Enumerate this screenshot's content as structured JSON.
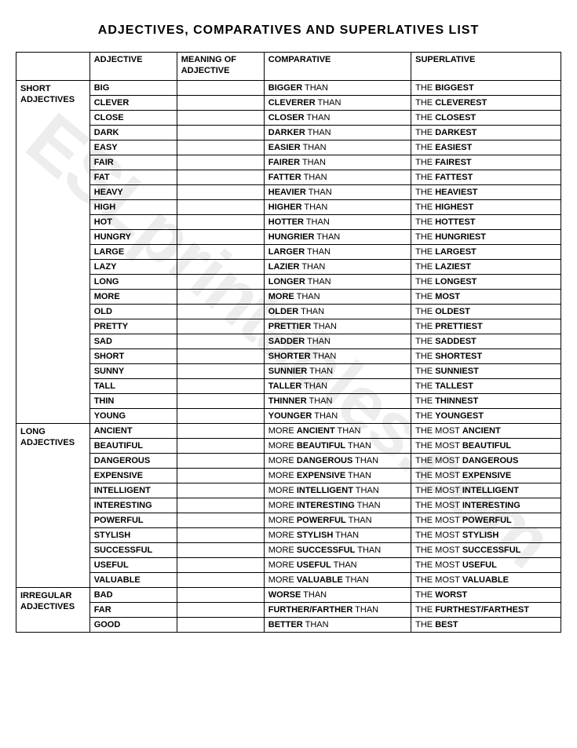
{
  "title": "ADJECTIVES, COMPARATIVES AND SUPERLATIVES LIST",
  "watermark": "ESLprintables.com",
  "headers": {
    "category": "",
    "adjective": "ADJECTIVE",
    "meaning": "MEANING OF ADJECTIVE",
    "comparative": "COMPARATIVE",
    "superlative": "SUPERLATIVE"
  },
  "sections": [
    {
      "category": "SHORT ADJECTIVES",
      "rows": [
        {
          "adj": "BIG",
          "comp_b": "BIGGER",
          "comp_t": " THAN",
          "sup_p": "THE ",
          "sup_b": "BIGGEST"
        },
        {
          "adj": "CLEVER",
          "comp_b": "CLEVERER",
          "comp_t": " THAN",
          "sup_p": "THE ",
          "sup_b": "CLEVEREST"
        },
        {
          "adj": "CLOSE",
          "comp_b": "CLOSER",
          "comp_t": " THAN",
          "sup_p": "THE ",
          "sup_b": "CLOSEST"
        },
        {
          "adj": "DARK",
          "comp_b": "DARKER",
          "comp_t": " THAN",
          "sup_p": "THE ",
          "sup_b": "DARKEST"
        },
        {
          "adj": "EASY",
          "comp_b": "EASIER",
          "comp_t": " THAN",
          "sup_p": "THE ",
          "sup_b": "EASIEST"
        },
        {
          "adj": "FAIR",
          "comp_b": "FAIRER",
          "comp_t": " THAN",
          "sup_p": "THE ",
          "sup_b": "FAIREST"
        },
        {
          "adj": "FAT",
          "comp_b": "FATTER",
          "comp_t": " THAN",
          "sup_p": "THE ",
          "sup_b": "FATTEST"
        },
        {
          "adj": "HEAVY",
          "comp_b": "HEAVIER",
          "comp_t": " THAN",
          "sup_p": "THE ",
          "sup_b": "HEAVIEST"
        },
        {
          "adj": "HIGH",
          "comp_b": "HIGHER",
          "comp_t": " THAN",
          "sup_p": "THE ",
          "sup_b": "HIGHEST"
        },
        {
          "adj": "HOT",
          "comp_b": "HOTTER",
          "comp_t": " THAN",
          "sup_p": "THE ",
          "sup_b": "HOTTEST"
        },
        {
          "adj": "HUNGRY",
          "comp_b": "HUNGRIER",
          "comp_t": " THAN",
          "sup_p": "THE ",
          "sup_b": "HUNGRIEST"
        },
        {
          "adj": "LARGE",
          "comp_b": "LARGER",
          "comp_t": " THAN",
          "sup_p": "THE ",
          "sup_b": "LARGEST"
        },
        {
          "adj": "LAZY",
          "comp_b": "LAZIER",
          "comp_t": " THAN",
          "sup_p": "THE ",
          "sup_b": "LAZIEST"
        },
        {
          "adj": "LONG",
          "comp_b": "LONGER",
          "comp_t": " THAN",
          "sup_p": "THE ",
          "sup_b": "LONGEST"
        },
        {
          "adj": "MORE",
          "comp_b": "MORE",
          "comp_t": " THAN",
          "sup_p": "THE ",
          "sup_b": "MOST"
        },
        {
          "adj": "OLD",
          "comp_b": "OLDER",
          "comp_t": " THAN",
          "sup_p": "THE ",
          "sup_b": "OLDEST"
        },
        {
          "adj": "PRETTY",
          "comp_b": "PRETTIER",
          "comp_t": " THAN",
          "sup_p": "THE ",
          "sup_b": "PRETTIEST"
        },
        {
          "adj": "SAD",
          "comp_b": "SADDER",
          "comp_t": "  THAN",
          "sup_p": "THE ",
          "sup_b": "SADDEST"
        },
        {
          "adj": "SHORT",
          "comp_b": "SHORTER",
          "comp_t": " THAN",
          "sup_p": "THE ",
          "sup_b": "SHORTEST"
        },
        {
          "adj": "SUNNY",
          "comp_b": "SUNNIER",
          "comp_t": " THAN",
          "sup_p": "THE ",
          "sup_b": "SUNNIEST"
        },
        {
          "adj": "TALL",
          "comp_b": "TALLER",
          "comp_t": " THAN",
          "sup_p": "THE ",
          "sup_b": "TALLEST"
        },
        {
          "adj": "THIN",
          "comp_b": "THINNER",
          "comp_t": " THAN",
          "sup_p": "THE ",
          "sup_b": "THINNEST"
        },
        {
          "adj": "YOUNG",
          "comp_b": "YOUNGER",
          "comp_t": " THAN",
          "sup_p": "THE ",
          "sup_b": "YOUNGEST"
        }
      ]
    },
    {
      "category": "LONG ADJECTIVES",
      "rows": [
        {
          "adj": "ANCIENT",
          "comp_p": "MORE ",
          "comp_b": "ANCIENT",
          "comp_t": " THAN",
          "sup_p": "THE MOST ",
          "sup_b": "ANCIENT"
        },
        {
          "adj": "BEAUTIFUL",
          "comp_p": "MORE ",
          "comp_b": "BEAUTIFUL",
          "comp_t": " THAN",
          "sup_p": "THE MOST ",
          "sup_b": "BEAUTIFUL"
        },
        {
          "adj": "DANGEROUS",
          "comp_p": "MORE ",
          "comp_b": "DANGEROUS",
          "comp_t": " THAN",
          "sup_p": "THE MOST ",
          "sup_b": "DANGEROUS"
        },
        {
          "adj": "EXPENSIVE",
          "comp_p": "MORE ",
          "comp_b": "EXPENSIVE",
          "comp_t": " THAN",
          "sup_p": "THE MOST ",
          "sup_b": "EXPENSIVE"
        },
        {
          "adj": "INTELLIGENT",
          "comp_p": "MORE ",
          "comp_b": "INTELLIGENT",
          "comp_t": " THAN",
          "sup_p": "THE MOST ",
          "sup_b": "INTELLIGENT"
        },
        {
          "adj": "INTERESTING",
          "comp_p": "MORE ",
          "comp_b": "INTERESTING",
          "comp_t": " THAN",
          "sup_p": "THE MOST ",
          "sup_b": "INTERESTING"
        },
        {
          "adj": "POWERFUL",
          "comp_p": "MORE ",
          "comp_b": "POWERFUL",
          "comp_t": " THAN",
          "sup_p": "THE MOST ",
          "sup_b": "POWERFUL"
        },
        {
          "adj": "STYLISH",
          "comp_p": "MORE ",
          "comp_b": "STYLISH",
          "comp_t": " THAN",
          "sup_p": "THE MOST ",
          "sup_b": "STYLISH"
        },
        {
          "adj": "SUCCESSFUL",
          "comp_p": "MORE ",
          "comp_b": "SUCCESSFUL",
          "comp_t": " THAN",
          "sup_p": "THE MOST ",
          "sup_b": "SUCCESSFUL"
        },
        {
          "adj": "USEFUL",
          "comp_p": "MORE ",
          "comp_b": "USEFUL",
          "comp_t": " THAN",
          "sup_p": "THE MOST ",
          "sup_b": "USEFUL"
        },
        {
          "adj": "VALUABLE",
          "comp_p": "MORE ",
          "comp_b": "VALUABLE",
          "comp_t": " THAN",
          "sup_p": "THE MOST ",
          "sup_b": "VALUABLE"
        }
      ]
    },
    {
      "category": "IRREGULAR ADJECTIVES",
      "rows": [
        {
          "adj": "BAD",
          "comp_b": "WORSE",
          "comp_t": " THAN",
          "sup_p": "THE ",
          "sup_b": "WORST"
        },
        {
          "adj": "FAR",
          "comp_b": "FURTHER/FARTHER",
          "comp_t": " THAN",
          "sup_p": "THE ",
          "sup_b": "FURTHEST/FARTHEST"
        },
        {
          "adj": "GOOD",
          "comp_b": "BETTER",
          "comp_t": " THAN",
          "sup_p": "THE ",
          "sup_b": "BEST"
        }
      ]
    }
  ]
}
